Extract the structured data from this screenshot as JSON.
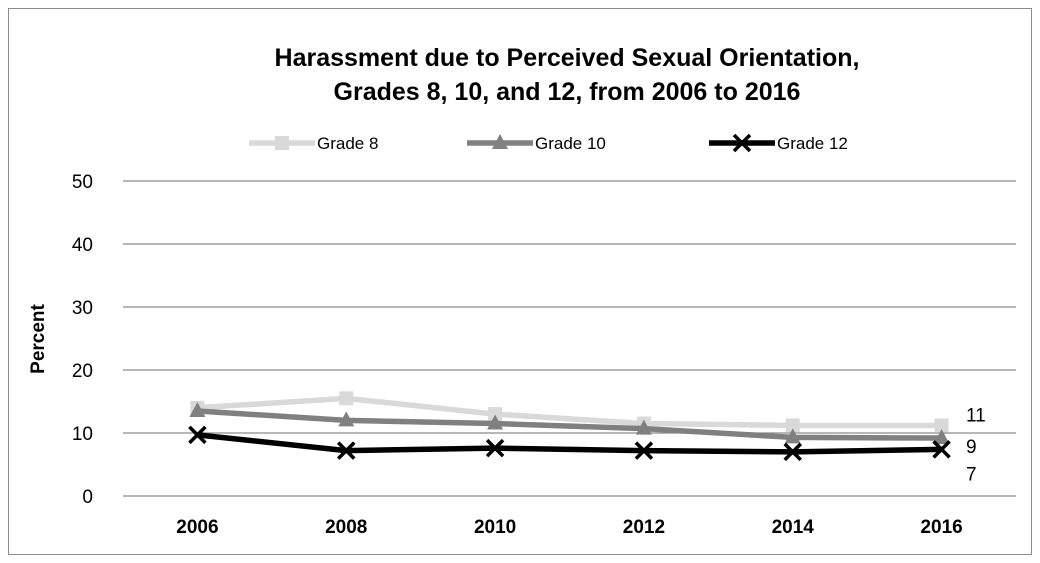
{
  "chart_data": {
    "type": "line",
    "title_lines": [
      "Harassment due to Perceived Sexual Orientation,",
      "Grades 8, 10, and 12, from 2006 to 2016"
    ],
    "ylabel": "Percent",
    "xlabel": "",
    "ylim": [
      0,
      50
    ],
    "yticks": [
      "0",
      "10",
      "20",
      "30",
      "40",
      "50"
    ],
    "categories": [
      "2006",
      "2008",
      "2010",
      "2012",
      "2014",
      "2016"
    ],
    "grid": "horizontal",
    "legend_position": "top",
    "series": [
      {
        "name": "Grade 8",
        "color": "#d9d9d9",
        "marker": "square",
        "values": [
          14,
          15.5,
          13,
          11.5,
          11.2,
          11.2
        ],
        "end_label": "11"
      },
      {
        "name": "Grade 10",
        "color": "#808080",
        "marker": "triangle",
        "values": [
          13.5,
          12,
          11.5,
          10.7,
          9.3,
          9.2
        ],
        "end_label": "9"
      },
      {
        "name": "Grade 12",
        "color": "#000000",
        "marker": "x",
        "values": [
          9.7,
          7.2,
          7.6,
          7.2,
          7,
          7.4
        ],
        "end_label": "7"
      }
    ]
  }
}
